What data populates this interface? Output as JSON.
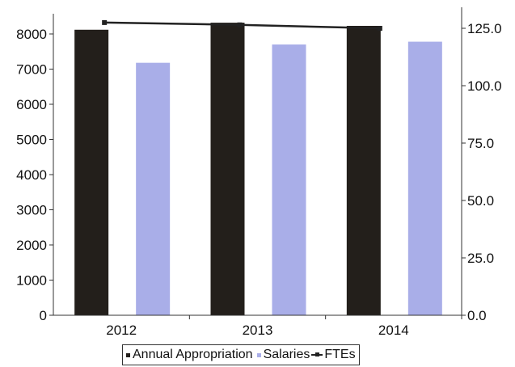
{
  "chart_data": {
    "type": "bar",
    "categories": [
      "2012",
      "2013",
      "2014"
    ],
    "series": [
      {
        "name": "Annual Appropriation",
        "kind": "bar",
        "axis": "left",
        "color": "#231f1b",
        "values": [
          8120,
          8320,
          8230
        ]
      },
      {
        "name": "Salaries",
        "kind": "bar",
        "axis": "left",
        "color": "#a9aee8",
        "values": [
          7180,
          7700,
          7780
        ]
      },
      {
        "name": "FTEs",
        "kind": "line",
        "axis": "right",
        "color": "#222222",
        "values": [
          127.5,
          126.5,
          125.0
        ]
      }
    ],
    "y_left": {
      "min": 0,
      "max": 8000,
      "ticks": [
        "0",
        "1000",
        "2000",
        "3000",
        "4000",
        "5000",
        "6000",
        "7000",
        "8000"
      ]
    },
    "y_right": {
      "min": 0,
      "max": 125,
      "ticks": [
        "0.0",
        "25.0",
        "50.0",
        "75.0",
        "100.0",
        "125.0"
      ]
    },
    "title": "",
    "xlabel": "",
    "ylabel": "",
    "legend": "bottom",
    "grid": false
  }
}
